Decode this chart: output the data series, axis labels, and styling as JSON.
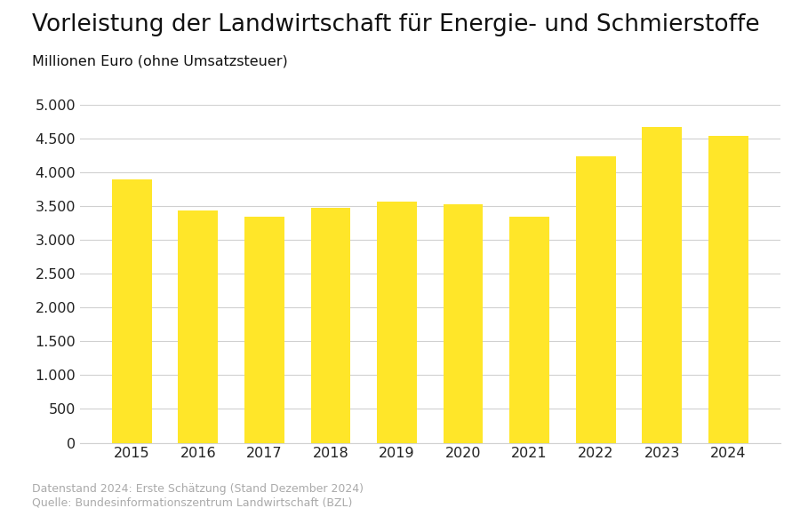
{
  "title": "Vorleistung der Landwirtschaft für Energie- und Schmierstoffe",
  "subtitle": "Millionen Euro (ohne Umsatzsteuer)",
  "years": [
    2015,
    2016,
    2017,
    2018,
    2019,
    2020,
    2021,
    2022,
    2023,
    2024
  ],
  "values": [
    3900,
    3430,
    3340,
    3480,
    3570,
    3530,
    3340,
    4240,
    4670,
    4540
  ],
  "bar_color": "#FFE629",
  "background_color": "#ffffff",
  "ylim": [
    0,
    5000
  ],
  "yticks": [
    0,
    500,
    1000,
    1500,
    2000,
    2500,
    3000,
    3500,
    4000,
    4500,
    5000
  ],
  "grid_color": "#d0d0d0",
  "footnote_line1": "Datenstand 2024: Erste Schätzung (Stand Dezember 2024)",
  "footnote_line2": "Quelle: Bundesinformationszentrum Landwirtschaft (BZL)",
  "title_fontsize": 19,
  "subtitle_fontsize": 11.5,
  "tick_fontsize": 11.5,
  "footnote_fontsize": 9
}
